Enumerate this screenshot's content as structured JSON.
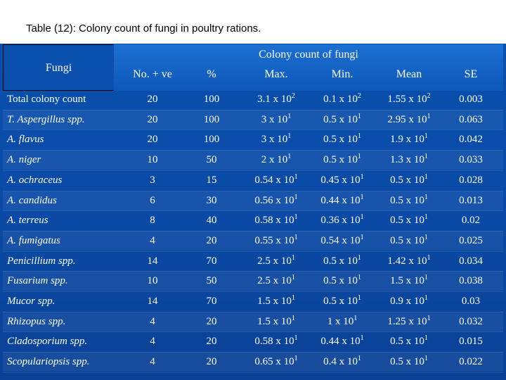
{
  "title": "Table (12): Colony count of fungi in poultry rations.",
  "header": {
    "row_label": "Fungi",
    "group_label": "Colony count of fungi",
    "columns": [
      "No. + ve",
      "%",
      "Max.",
      "Min.",
      "Mean",
      "SE"
    ]
  },
  "rows": [
    {
      "name": "Total colony count",
      "italic": false,
      "pos": "20",
      "pct": "100",
      "max": {
        "m": "3.1 x 10",
        "e": "2"
      },
      "min": {
        "m": "0.1 x 10",
        "e": "2"
      },
      "mean": {
        "m": "1.55 x 10",
        "e": "2"
      },
      "se": "0.003"
    },
    {
      "name": "T. Aspergillus spp.",
      "italic": true,
      "pos": "20",
      "pct": "100",
      "max": {
        "m": "3 x 10",
        "e": "1"
      },
      "min": {
        "m": "0.5 x 10",
        "e": "1"
      },
      "mean": {
        "m": "2.95 x 10",
        "e": "1"
      },
      "se": "0.063"
    },
    {
      "name": "A. flavus",
      "italic": true,
      "pos": "20",
      "pct": "100",
      "max": {
        "m": "3 x 10",
        "e": "1"
      },
      "min": {
        "m": "0.5 x 10",
        "e": "1"
      },
      "mean": {
        "m": "1.9 x 10",
        "e": "1"
      },
      "se": "0.042"
    },
    {
      "name": "A. niger",
      "italic": true,
      "pos": "10",
      "pct": "50",
      "max": {
        "m": "2 x 10",
        "e": "1"
      },
      "min": {
        "m": "0.5 x 10",
        "e": "1"
      },
      "mean": {
        "m": "1.3 x 10",
        "e": "1"
      },
      "se": "0.033"
    },
    {
      "name": "A. ochraceus",
      "italic": true,
      "pos": "3",
      "pct": "15",
      "max": {
        "m": "0.54 x 10",
        "e": "1"
      },
      "min": {
        "m": "0.45 x 10",
        "e": "1"
      },
      "mean": {
        "m": "0.5 x 10",
        "e": "1"
      },
      "se": "0.028"
    },
    {
      "name": "A. candidus",
      "italic": true,
      "pos": "6",
      "pct": "30",
      "max": {
        "m": "0.56 x 10",
        "e": "1"
      },
      "min": {
        "m": "0.44 x 10",
        "e": "1"
      },
      "mean": {
        "m": "0.5 x 10",
        "e": "1"
      },
      "se": "0.013"
    },
    {
      "name": "A. terreus",
      "italic": true,
      "pos": "8",
      "pct": "40",
      "max": {
        "m": "0.58 x 10",
        "e": "1"
      },
      "min": {
        "m": "0.36 x 10",
        "e": "1"
      },
      "mean": {
        "m": "0.5 x 10",
        "e": "1"
      },
      "se": "0.02"
    },
    {
      "name": "A. fumigatus",
      "italic": true,
      "pos": "4",
      "pct": "20",
      "max": {
        "m": "0.55 x 10",
        "e": "1"
      },
      "min": {
        "m": "0.54 x 10",
        "e": "1"
      },
      "mean": {
        "m": "0.5 x 10",
        "e": "1"
      },
      "se": "0.025"
    },
    {
      "name": "Penicillium spp.",
      "italic": true,
      "pos": "14",
      "pct": "70",
      "max": {
        "m": "2.5 x 10",
        "e": "1"
      },
      "min": {
        "m": "0.5 x 10",
        "e": "1"
      },
      "mean": {
        "m": "1.42 x 10",
        "e": "1"
      },
      "se": "0.034"
    },
    {
      "name": "Fusarium spp.",
      "italic": true,
      "pos": "10",
      "pct": "50",
      "max": {
        "m": "2.5 x 10",
        "e": "1"
      },
      "min": {
        "m": "0.5 x 10",
        "e": "1"
      },
      "mean": {
        "m": "1.5 x 10",
        "e": "1"
      },
      "se": "0.038"
    },
    {
      "name": "Mucor spp.",
      "italic": true,
      "pos": "14",
      "pct": "70",
      "max": {
        "m": "1.5 x 10",
        "e": "1"
      },
      "min": {
        "m": "0.5 x 10",
        "e": "1"
      },
      "mean": {
        "m": "0.9 x 10",
        "e": "1"
      },
      "se": "0.03"
    },
    {
      "name": "Rhizopus spp.",
      "italic": true,
      "pos": "4",
      "pct": "20",
      "max": {
        "m": "1.5 x 10",
        "e": "1"
      },
      "min": {
        "m": "1 x 10",
        "e": "1"
      },
      "mean": {
        "m": "1.25 x 10",
        "e": "1"
      },
      "se": "0.032"
    },
    {
      "name": "Cladosporium spp.",
      "italic": true,
      "pos": "4",
      "pct": "20",
      "max": {
        "m": "0.58 x 10",
        "e": "1"
      },
      "min": {
        "m": "0.44 x 10",
        "e": "1"
      },
      "mean": {
        "m": "0.5 x 10",
        "e": "1"
      },
      "se": "0.015"
    },
    {
      "name": "Scopulariopsis spp.",
      "italic": true,
      "pos": "4",
      "pct": "20",
      "max": {
        "m": "0.65 x 10",
        "e": "1"
      },
      "min": {
        "m": "0.4 x 10",
        "e": "1"
      },
      "mean": {
        "m": "0.5 x 10",
        "e": "1"
      },
      "se": "0.022"
    }
  ]
}
